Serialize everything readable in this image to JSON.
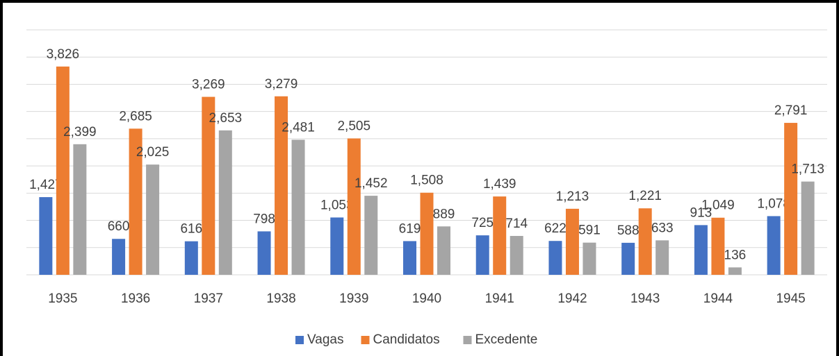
{
  "chart_data": {
    "type": "bar",
    "categories": [
      "1935",
      "1936",
      "1937",
      "1938",
      "1939",
      "1940",
      "1941",
      "1942",
      "1943",
      "1944",
      "1945"
    ],
    "series": [
      {
        "name": "Vagas",
        "color": "#4472c4",
        "values": [
          1427,
          660,
          616,
          798,
          1053,
          619,
          725,
          622,
          588,
          913,
          1078
        ],
        "value_labels": [
          "1,427",
          "660",
          "616",
          "798",
          "1,053",
          "619",
          "725",
          "622",
          "588",
          "913",
          "1,078"
        ]
      },
      {
        "name": "Candidatos",
        "color": "#ed7d31",
        "values": [
          3826,
          2685,
          3269,
          3279,
          2505,
          1508,
          1439,
          1213,
          1221,
          1049,
          2791
        ],
        "value_labels": [
          "3,826",
          "2,685",
          "3,269",
          "3,279",
          "2,505",
          "1,508",
          "1,439",
          "1,213",
          "1,221",
          "1,049",
          "2,791"
        ]
      },
      {
        "name": "Excedente",
        "color": "#a5a5a5",
        "values": [
          2399,
          2025,
          2653,
          2481,
          1452,
          889,
          714,
          591,
          633,
          136,
          1713
        ],
        "value_labels": [
          "2,399",
          "2,025",
          "2,653",
          "2,481",
          "1,452",
          "889",
          "714",
          "591",
          "633",
          "136",
          "1,713"
        ]
      }
    ],
    "ylim": [
      0,
      4500
    ],
    "yticks": [
      0,
      500,
      1000,
      1500,
      2000,
      2500,
      3000,
      3500,
      4000,
      4500
    ],
    "grid": true,
    "legend": "bottom"
  }
}
